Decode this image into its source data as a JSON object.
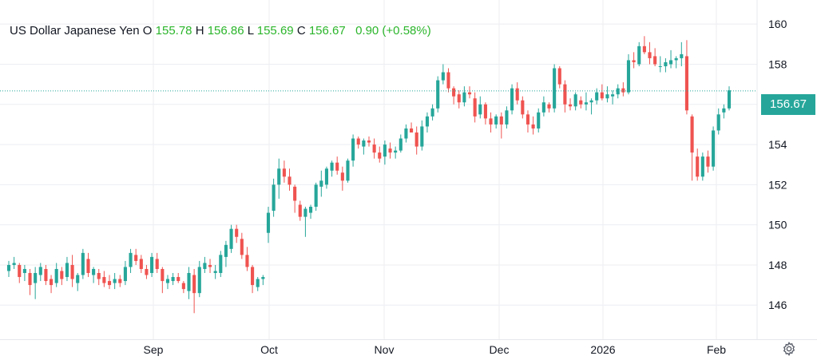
{
  "legend": {
    "symbol": "US Dollar Japanese Yen",
    "o_label": "O",
    "o_value": "155.78",
    "h_label": "H",
    "h_value": "156.86",
    "l_label": "L",
    "l_value": "155.69",
    "c_label": "C",
    "c_value": "156.67",
    "change": "0.90 (+0.58%)"
  },
  "last_price": "156.67",
  "colors": {
    "up": "#26a69a",
    "down": "#ef5350",
    "grid": "#eceef2",
    "axis_text": "#131722",
    "price_line": "#26a69a"
  },
  "settings_icon": "gear-icon",
  "chart_data": {
    "type": "candlestick",
    "y_ticks": [
      "146",
      "148",
      "150",
      "152",
      "154",
      "156",
      "158",
      "160"
    ],
    "ylim": [
      144.3,
      161.2
    ],
    "x_labels": [
      "Sep",
      "Oct",
      "Nov",
      "Dec",
      "2026",
      "Feb"
    ],
    "last_value": 156.67,
    "ohlc": [
      [
        147.7,
        148.2,
        147.4,
        148.0
      ],
      [
        148.0,
        148.4,
        147.8,
        148.1
      ],
      [
        148.0,
        148.1,
        147.1,
        147.4
      ],
      [
        147.6,
        148.0,
        147.2,
        147.8
      ],
      [
        147.6,
        147.8,
        146.5,
        147.0
      ],
      [
        147.1,
        147.9,
        146.3,
        147.6
      ],
      [
        147.5,
        148.1,
        147.2,
        147.9
      ],
      [
        147.8,
        148.0,
        147.0,
        147.2
      ],
      [
        147.3,
        147.5,
        146.6,
        147.0
      ],
      [
        147.1,
        148.1,
        146.9,
        147.8
      ],
      [
        147.7,
        147.9,
        147.0,
        147.3
      ],
      [
        147.4,
        148.4,
        147.2,
        148.1
      ],
      [
        148.0,
        148.5,
        146.9,
        147.3
      ],
      [
        147.1,
        147.6,
        146.7,
        147.5
      ],
      [
        147.5,
        148.8,
        147.3,
        148.6
      ],
      [
        148.3,
        148.6,
        147.4,
        147.6
      ],
      [
        147.5,
        147.9,
        147.1,
        147.8
      ],
      [
        147.6,
        147.8,
        147.0,
        147.3
      ],
      [
        147.4,
        147.7,
        146.9,
        147.1
      ],
      [
        147.2,
        147.5,
        146.8,
        147.0
      ],
      [
        147.1,
        147.6,
        146.8,
        147.3
      ],
      [
        147.3,
        147.5,
        146.9,
        147.1
      ],
      [
        147.2,
        148.2,
        147.0,
        147.9
      ],
      [
        147.9,
        148.8,
        147.6,
        148.6
      ],
      [
        148.5,
        148.8,
        148.0,
        148.2
      ],
      [
        148.3,
        148.5,
        147.6,
        147.8
      ],
      [
        147.8,
        148.0,
        147.3,
        147.5
      ],
      [
        147.6,
        148.6,
        147.4,
        148.4
      ],
      [
        148.3,
        148.6,
        147.6,
        147.8
      ],
      [
        147.8,
        147.9,
        146.6,
        147.2
      ],
      [
        147.1,
        147.5,
        146.8,
        147.3
      ],
      [
        147.2,
        147.6,
        147.0,
        147.4
      ],
      [
        147.4,
        147.6,
        147.1,
        147.2
      ],
      [
        147.1,
        147.2,
        146.6,
        146.8
      ],
      [
        146.7,
        147.9,
        146.3,
        147.6
      ],
      [
        147.5,
        147.8,
        145.6,
        146.6
      ],
      [
        146.6,
        148.2,
        146.4,
        147.9
      ],
      [
        147.8,
        148.4,
        147.6,
        148.1
      ],
      [
        148.0,
        148.3,
        147.6,
        147.9
      ],
      [
        147.6,
        148.0,
        147.3,
        147.7
      ],
      [
        147.6,
        148.7,
        147.4,
        148.5
      ],
      [
        148.4,
        149.2,
        147.9,
        149.0
      ],
      [
        148.8,
        150.0,
        148.6,
        149.8
      ],
      [
        149.8,
        150.0,
        149.1,
        149.4
      ],
      [
        149.3,
        149.6,
        148.3,
        148.5
      ],
      [
        148.5,
        148.9,
        147.7,
        147.9
      ],
      [
        147.9,
        148.0,
        146.6,
        147.0
      ],
      [
        146.9,
        147.4,
        146.7,
        147.3
      ],
      [
        147.3,
        147.5,
        147.0,
        147.4
      ],
      [
        149.6,
        150.9,
        149.1,
        150.6
      ],
      [
        150.7,
        152.3,
        150.4,
        152.0
      ],
      [
        152.0,
        153.3,
        151.3,
        152.8
      ],
      [
        152.8,
        153.2,
        152.1,
        152.4
      ],
      [
        152.4,
        152.8,
        151.7,
        152.0
      ],
      [
        151.9,
        152.0,
        150.6,
        151.2
      ],
      [
        151.0,
        151.2,
        150.2,
        150.4
      ],
      [
        150.4,
        150.9,
        149.4,
        150.8
      ],
      [
        150.6,
        151.0,
        150.3,
        150.9
      ],
      [
        150.9,
        152.1,
        150.7,
        152.0
      ],
      [
        151.9,
        152.7,
        151.4,
        152.2
      ],
      [
        152.0,
        152.9,
        151.8,
        152.8
      ],
      [
        152.7,
        153.2,
        152.4,
        153.1
      ],
      [
        153.1,
        153.4,
        152.5,
        152.7
      ],
      [
        152.6,
        152.9,
        151.7,
        152.2
      ],
      [
        152.2,
        153.3,
        152.1,
        153.2
      ],
      [
        153.2,
        154.5,
        152.9,
        154.3
      ],
      [
        154.3,
        154.4,
        153.8,
        154.0
      ],
      [
        153.9,
        154.3,
        153.5,
        154.2
      ],
      [
        154.2,
        154.4,
        153.9,
        154.1
      ],
      [
        154.0,
        154.3,
        153.3,
        153.6
      ],
      [
        153.6,
        153.9,
        153.1,
        153.3
      ],
      [
        153.4,
        154.2,
        153.0,
        154.0
      ],
      [
        153.8,
        154.1,
        153.3,
        153.6
      ],
      [
        153.6,
        153.9,
        153.3,
        153.7
      ],
      [
        153.7,
        154.5,
        153.6,
        154.3
      ],
      [
        154.3,
        155.0,
        154.1,
        154.8
      ],
      [
        154.8,
        155.1,
        154.6,
        154.6
      ],
      [
        154.6,
        154.9,
        153.5,
        153.9
      ],
      [
        153.9,
        155.2,
        153.7,
        154.9
      ],
      [
        154.9,
        155.6,
        154.6,
        155.4
      ],
      [
        155.4,
        156.0,
        155.2,
        155.8
      ],
      [
        155.8,
        157.4,
        155.6,
        157.2
      ],
      [
        157.2,
        158.0,
        157.0,
        157.6
      ],
      [
        157.6,
        157.8,
        156.6,
        156.8
      ],
      [
        156.8,
        156.9,
        156.0,
        156.4
      ],
      [
        156.5,
        156.7,
        155.8,
        156.1
      ],
      [
        156.1,
        156.9,
        155.9,
        156.6
      ],
      [
        156.6,
        156.9,
        156.3,
        156.5
      ],
      [
        156.3,
        156.6,
        155.1,
        155.4
      ],
      [
        155.5,
        156.4,
        155.3,
        156.0
      ],
      [
        156.0,
        156.1,
        155.0,
        155.3
      ],
      [
        155.3,
        155.6,
        154.6,
        155.0
      ],
      [
        155.0,
        155.5,
        154.8,
        155.4
      ],
      [
        155.4,
        155.6,
        154.3,
        155.0
      ],
      [
        155.0,
        155.9,
        154.8,
        155.7
      ],
      [
        155.7,
        157.0,
        155.5,
        156.8
      ],
      [
        156.8,
        157.1,
        156.0,
        156.2
      ],
      [
        156.2,
        156.4,
        155.3,
        155.5
      ],
      [
        155.5,
        155.7,
        154.6,
        155.0
      ],
      [
        155.0,
        155.4,
        154.5,
        154.8
      ],
      [
        154.8,
        155.8,
        154.6,
        155.6
      ],
      [
        155.6,
        156.4,
        155.4,
        156.1
      ],
      [
        156.0,
        156.1,
        155.6,
        155.8
      ],
      [
        155.8,
        158.0,
        155.6,
        157.8
      ],
      [
        157.8,
        157.9,
        156.8,
        157.0
      ],
      [
        157.0,
        157.2,
        155.6,
        156.0
      ],
      [
        156.0,
        156.3,
        155.7,
        155.9
      ],
      [
        155.9,
        156.6,
        155.7,
        156.5
      ],
      [
        156.2,
        156.4,
        155.8,
        156.0
      ],
      [
        156.0,
        156.6,
        155.7,
        156.1
      ],
      [
        156.1,
        156.3,
        155.5,
        156.2
      ],
      [
        156.2,
        156.8,
        156.0,
        156.6
      ],
      [
        156.6,
        157.0,
        156.2,
        156.3
      ],
      [
        156.3,
        156.9,
        156.1,
        156.5
      ],
      [
        156.4,
        156.7,
        156.0,
        156.5
      ],
      [
        156.5,
        157.0,
        156.3,
        156.8
      ],
      [
        156.8,
        157.1,
        156.4,
        156.6
      ],
      [
        156.6,
        158.5,
        156.5,
        158.2
      ],
      [
        158.2,
        158.6,
        157.8,
        158.1
      ],
      [
        158.0,
        159.1,
        157.9,
        158.9
      ],
      [
        158.9,
        159.4,
        158.5,
        158.6
      ],
      [
        158.6,
        159.1,
        158.0,
        158.3
      ],
      [
        158.4,
        158.8,
        157.9,
        158.0
      ],
      [
        157.9,
        158.4,
        157.6,
        157.9
      ],
      [
        157.9,
        158.3,
        157.6,
        158.1
      ],
      [
        158.0,
        158.7,
        157.8,
        158.2
      ],
      [
        158.2,
        158.4,
        157.8,
        158.3
      ],
      [
        158.3,
        159.1,
        157.9,
        158.5
      ],
      [
        158.4,
        159.2,
        155.5,
        155.7
      ],
      [
        155.4,
        155.5,
        152.2,
        153.6
      ],
      [
        153.4,
        153.8,
        152.2,
        152.4
      ],
      [
        152.4,
        153.6,
        152.2,
        153.4
      ],
      [
        153.4,
        153.7,
        152.6,
        152.9
      ],
      [
        152.9,
        154.9,
        152.7,
        154.7
      ],
      [
        154.7,
        155.8,
        154.5,
        155.5
      ],
      [
        155.6,
        156.0,
        155.3,
        155.8
      ],
      [
        155.8,
        156.9,
        155.7,
        156.7
      ]
    ]
  }
}
